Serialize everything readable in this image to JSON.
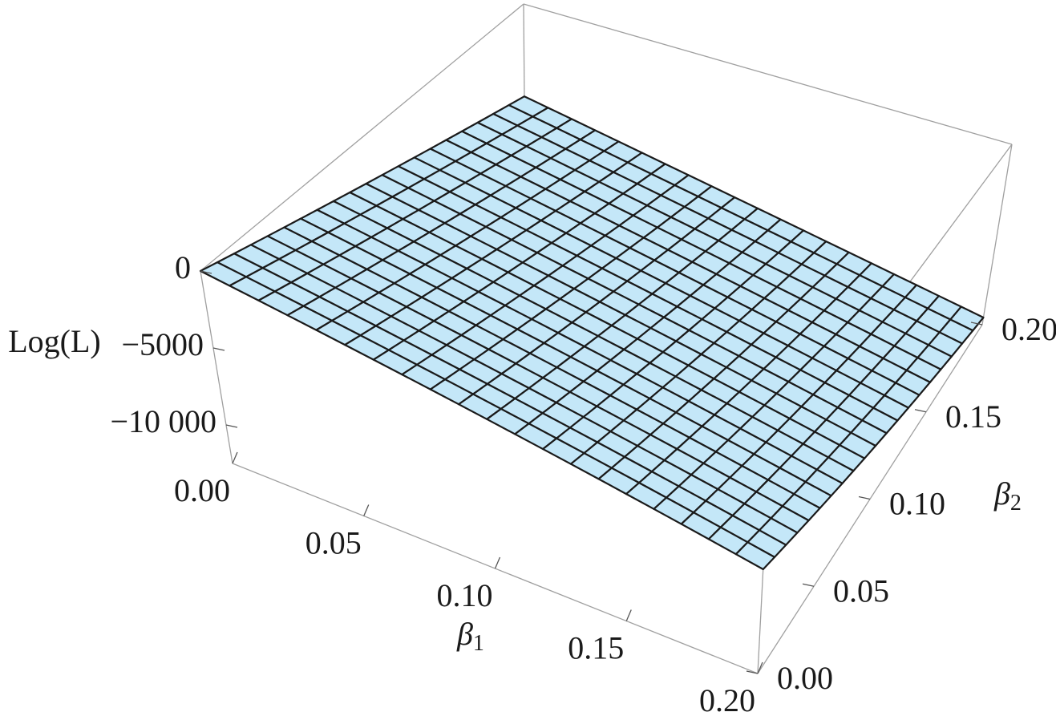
{
  "chart_data": {
    "type": "surface",
    "z_label": "Log(L)",
    "x_label": {
      "text": "β",
      "subscript": "1"
    },
    "y_label": {
      "text": "β",
      "subscript": "2"
    },
    "color": "#c4e7f8",
    "mesh_color": "#1a1a1a",
    "box_color": "#a0a0a0",
    "xlim": [
      0,
      0.2
    ],
    "ylim": [
      0,
      0.2
    ],
    "zlim": [
      -12500,
      0
    ],
    "xticks": [
      {
        "value": 0,
        "label": "0.00"
      },
      {
        "value": 0.05,
        "label": "0.05"
      },
      {
        "value": 0.1,
        "label": "0.10"
      },
      {
        "value": 0.15,
        "label": "0.15"
      },
      {
        "value": 0.2,
        "label": "0.20"
      }
    ],
    "yticks": [
      {
        "value": 0,
        "label": "0.00"
      },
      {
        "value": 0.05,
        "label": "0.05"
      },
      {
        "value": 0.1,
        "label": "0.10"
      },
      {
        "value": 0.15,
        "label": "0.15"
      },
      {
        "value": 0.2,
        "label": "0.20"
      }
    ],
    "zticks": [
      0,
      {
        "value": -5000,
        "label": "−5000"
      },
      {
        "value": -10000,
        "label": "−10 000"
      }
    ],
    "x": [
      0,
      0.01,
      0.02,
      0.03,
      0.04,
      0.05,
      0.06,
      0.07,
      0.08,
      0.09,
      0.1,
      0.11,
      0.12,
      0.13,
      0.14,
      0.15,
      0.16,
      0.17,
      0.18,
      0.19,
      0.2
    ],
    "y": [
      0,
      0.01,
      0.02,
      0.03,
      0.04,
      0.05,
      0.06,
      0.07,
      0.08,
      0.09,
      0.1,
      0.11,
      0.12,
      0.13,
      0.14,
      0.15,
      0.16,
      0.17,
      0.18,
      0.19,
      0.2
    ],
    "z": [
      [
        0,
        -300,
        -600,
        -900,
        -1200,
        -1500,
        -1800,
        -2100,
        -2400,
        -2700,
        -3000,
        -3300,
        -3600,
        -3900,
        -4200,
        -4500,
        -4800,
        -5100,
        -5400,
        -5700,
        -6000
      ],
      [
        -300,
        -600,
        -900,
        -1200,
        -1500,
        -1800,
        -2100,
        -2400,
        -2700,
        -3000,
        -3300,
        -3600,
        -3900,
        -4200,
        -4500,
        -4800,
        -5100,
        -5400,
        -5700,
        -6000,
        -6300
      ],
      [
        -600,
        -900,
        -1200,
        -1500,
        -1800,
        -2100,
        -2400,
        -2700,
        -3000,
        -3300,
        -3600,
        -3900,
        -4200,
        -4500,
        -4800,
        -5100,
        -5400,
        -5700,
        -6000,
        -6300,
        -6600
      ],
      [
        -900,
        -1200,
        -1500,
        -1800,
        -2100,
        -2400,
        -2700,
        -3000,
        -3300,
        -3600,
        -3900,
        -4200,
        -4500,
        -4800,
        -5100,
        -5400,
        -5700,
        -6000,
        -6300,
        -6600,
        -6900
      ],
      [
        -1200,
        -1500,
        -1800,
        -2100,
        -2400,
        -2700,
        -3000,
        -3300,
        -3600,
        -3900,
        -4200,
        -4500,
        -4800,
        -5100,
        -5400,
        -5700,
        -6000,
        -6300,
        -6600,
        -6900,
        -7200
      ],
      [
        -1500,
        -1800,
        -2100,
        -2400,
        -2700,
        -3000,
        -3300,
        -3600,
        -3900,
        -4200,
        -4500,
        -4800,
        -5100,
        -5400,
        -5700,
        -6000,
        -6300,
        -6600,
        -6900,
        -7200,
        -7500
      ],
      [
        -1800,
        -2100,
        -2400,
        -2700,
        -3000,
        -3300,
        -3600,
        -3900,
        -4200,
        -4500,
        -4800,
        -5100,
        -5400,
        -5700,
        -6000,
        -6300,
        -6600,
        -6900,
        -7200,
        -7500,
        -7800
      ],
      [
        -2100,
        -2400,
        -2700,
        -3000,
        -3300,
        -3600,
        -3900,
        -4200,
        -4500,
        -4800,
        -5100,
        -5400,
        -5700,
        -6000,
        -6300,
        -6600,
        -6900,
        -7200,
        -7500,
        -7800,
        -8100
      ],
      [
        -2400,
        -2700,
        -3000,
        -3300,
        -3600,
        -3900,
        -4200,
        -4500,
        -4800,
        -5100,
        -5400,
        -5700,
        -6000,
        -6300,
        -6600,
        -6900,
        -7200,
        -7500,
        -7800,
        -8100,
        -8400
      ],
      [
        -2700,
        -3000,
        -3300,
        -3600,
        -3900,
        -4200,
        -4500,
        -4800,
        -5100,
        -5400,
        -5700,
        -6000,
        -6300,
        -6600,
        -6900,
        -7200,
        -7500,
        -7800,
        -8100,
        -8400,
        -8700
      ],
      [
        -3000,
        -3300,
        -3600,
        -3900,
        -4200,
        -4500,
        -4800,
        -5100,
        -5400,
        -5700,
        -6000,
        -6300,
        -6600,
        -6900,
        -7200,
        -7500,
        -7800,
        -8100,
        -8400,
        -8700,
        -9000
      ],
      [
        -3300,
        -3600,
        -3900,
        -4200,
        -4500,
        -4800,
        -5100,
        -5400,
        -5700,
        -6000,
        -6300,
        -6600,
        -6900,
        -7200,
        -7500,
        -7800,
        -8100,
        -8400,
        -8700,
        -9000,
        -9300
      ],
      [
        -3600,
        -3900,
        -4200,
        -4500,
        -4800,
        -5100,
        -5400,
        -5700,
        -6000,
        -6300,
        -6600,
        -6900,
        -7200,
        -7500,
        -7800,
        -8100,
        -8400,
        -8700,
        -9000,
        -9300,
        -9600
      ],
      [
        -3900,
        -4200,
        -4500,
        -4800,
        -5100,
        -5400,
        -5700,
        -6000,
        -6300,
        -6600,
        -6900,
        -7200,
        -7500,
        -7800,
        -8100,
        -8400,
        -8700,
        -9000,
        -9300,
        -9600,
        -9900
      ],
      [
        -4200,
        -4500,
        -4800,
        -5100,
        -5400,
        -5700,
        -6000,
        -6300,
        -6600,
        -6900,
        -7200,
        -7500,
        -7800,
        -8100,
        -8400,
        -8700,
        -9000,
        -9300,
        -9600,
        -9900,
        -10200
      ],
      [
        -4500,
        -4800,
        -5100,
        -5400,
        -5700,
        -6000,
        -6300,
        -6600,
        -6900,
        -7200,
        -7500,
        -7800,
        -8100,
        -8400,
        -8700,
        -9000,
        -9300,
        -9600,
        -9900,
        -10200,
        -10500
      ],
      [
        -4800,
        -5100,
        -5400,
        -5700,
        -6000,
        -6300,
        -6600,
        -6900,
        -7200,
        -7500,
        -7800,
        -8100,
        -8400,
        -8700,
        -9000,
        -9300,
        -9600,
        -9900,
        -10200,
        -10500,
        -10800
      ],
      [
        -5100,
        -5400,
        -5700,
        -6000,
        -6300,
        -6600,
        -6900,
        -7200,
        -7500,
        -7800,
        -8100,
        -8400,
        -8700,
        -9000,
        -9300,
        -9600,
        -9900,
        -10200,
        -10500,
        -10800,
        -11100
      ],
      [
        -5400,
        -5700,
        -6000,
        -6300,
        -6600,
        -6900,
        -7200,
        -7500,
        -7800,
        -8100,
        -8400,
        -8700,
        -9000,
        -9300,
        -9600,
        -9900,
        -10200,
        -10500,
        -10800,
        -11100,
        -11400
      ],
      [
        -5700,
        -6000,
        -6300,
        -6600,
        -6900,
        -7200,
        -7500,
        -7800,
        -8100,
        -8400,
        -8700,
        -9000,
        -9300,
        -9600,
        -9900,
        -10200,
        -10500,
        -10800,
        -11100,
        -11400,
        -11700
      ],
      [
        -6000,
        -6300,
        -6600,
        -6900,
        -7200,
        -7500,
        -7800,
        -8100,
        -8400,
        -8700,
        -9000,
        -9300,
        -9600,
        -9900,
        -10200,
        -10500,
        -10800,
        -11100,
        -11400,
        -11700,
        -12000
      ]
    ]
  }
}
